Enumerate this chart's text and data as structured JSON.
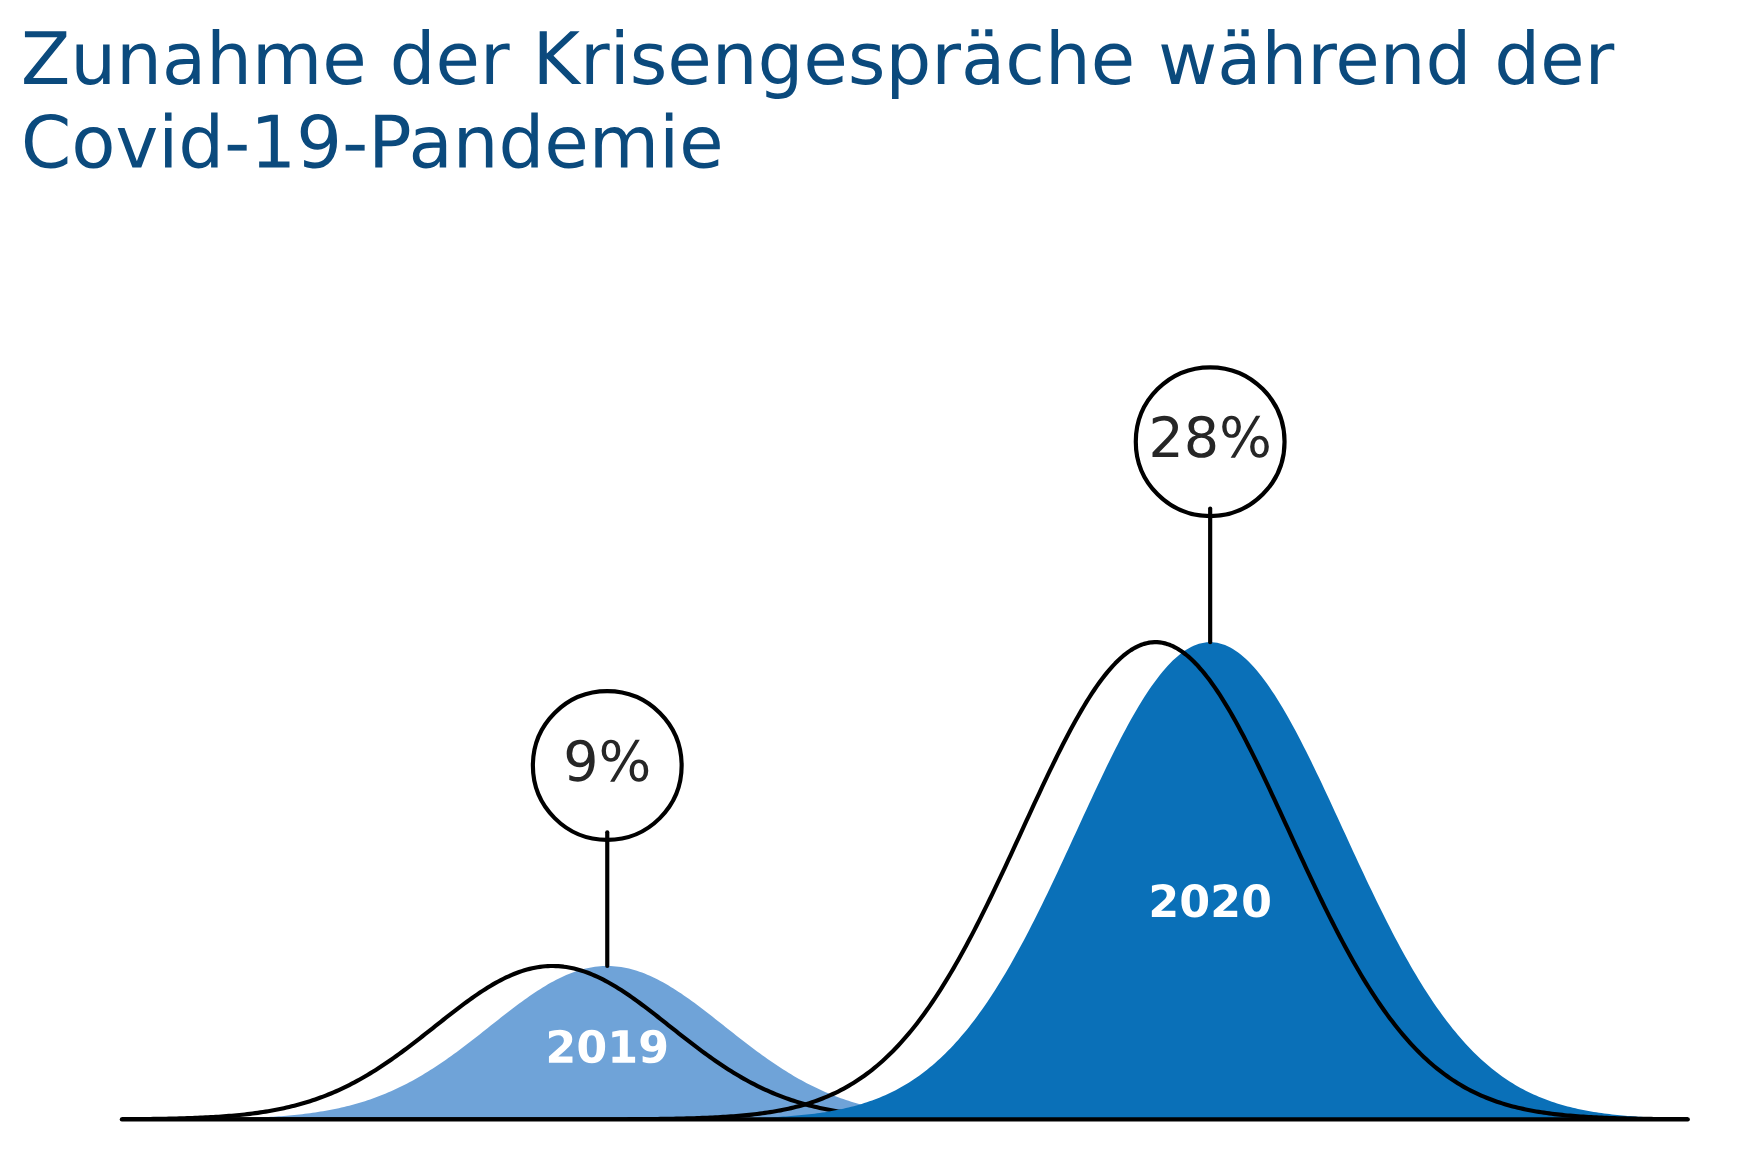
{
  "chart_data": {
    "type": "other",
    "title": "Zunahme der Krisengespräche während der Covid-19-Pandemie",
    "categories": [
      "2019",
      "2020"
    ],
    "values": [
      9,
      28
    ],
    "value_labels": [
      "9%",
      "28%"
    ],
    "colors": [
      "#6fa3d8",
      "#0a70b8"
    ]
  }
}
